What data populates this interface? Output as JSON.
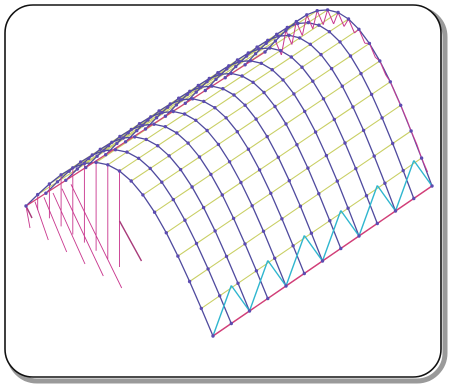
{
  "figure": {
    "frame_color": "#111111",
    "shadow_color": "#9a9a9a",
    "colors": {
      "purlin": "#c9cf64",
      "arch_chord": "#4f4a9e",
      "node": "#5c4bb0",
      "end_truss": "#c9398f",
      "end_frame": "#a83b7a",
      "side_truss": "#2fb6cf",
      "base_edge": "#d23d7b"
    },
    "arch_count": 13,
    "purlin_count": 16
  }
}
